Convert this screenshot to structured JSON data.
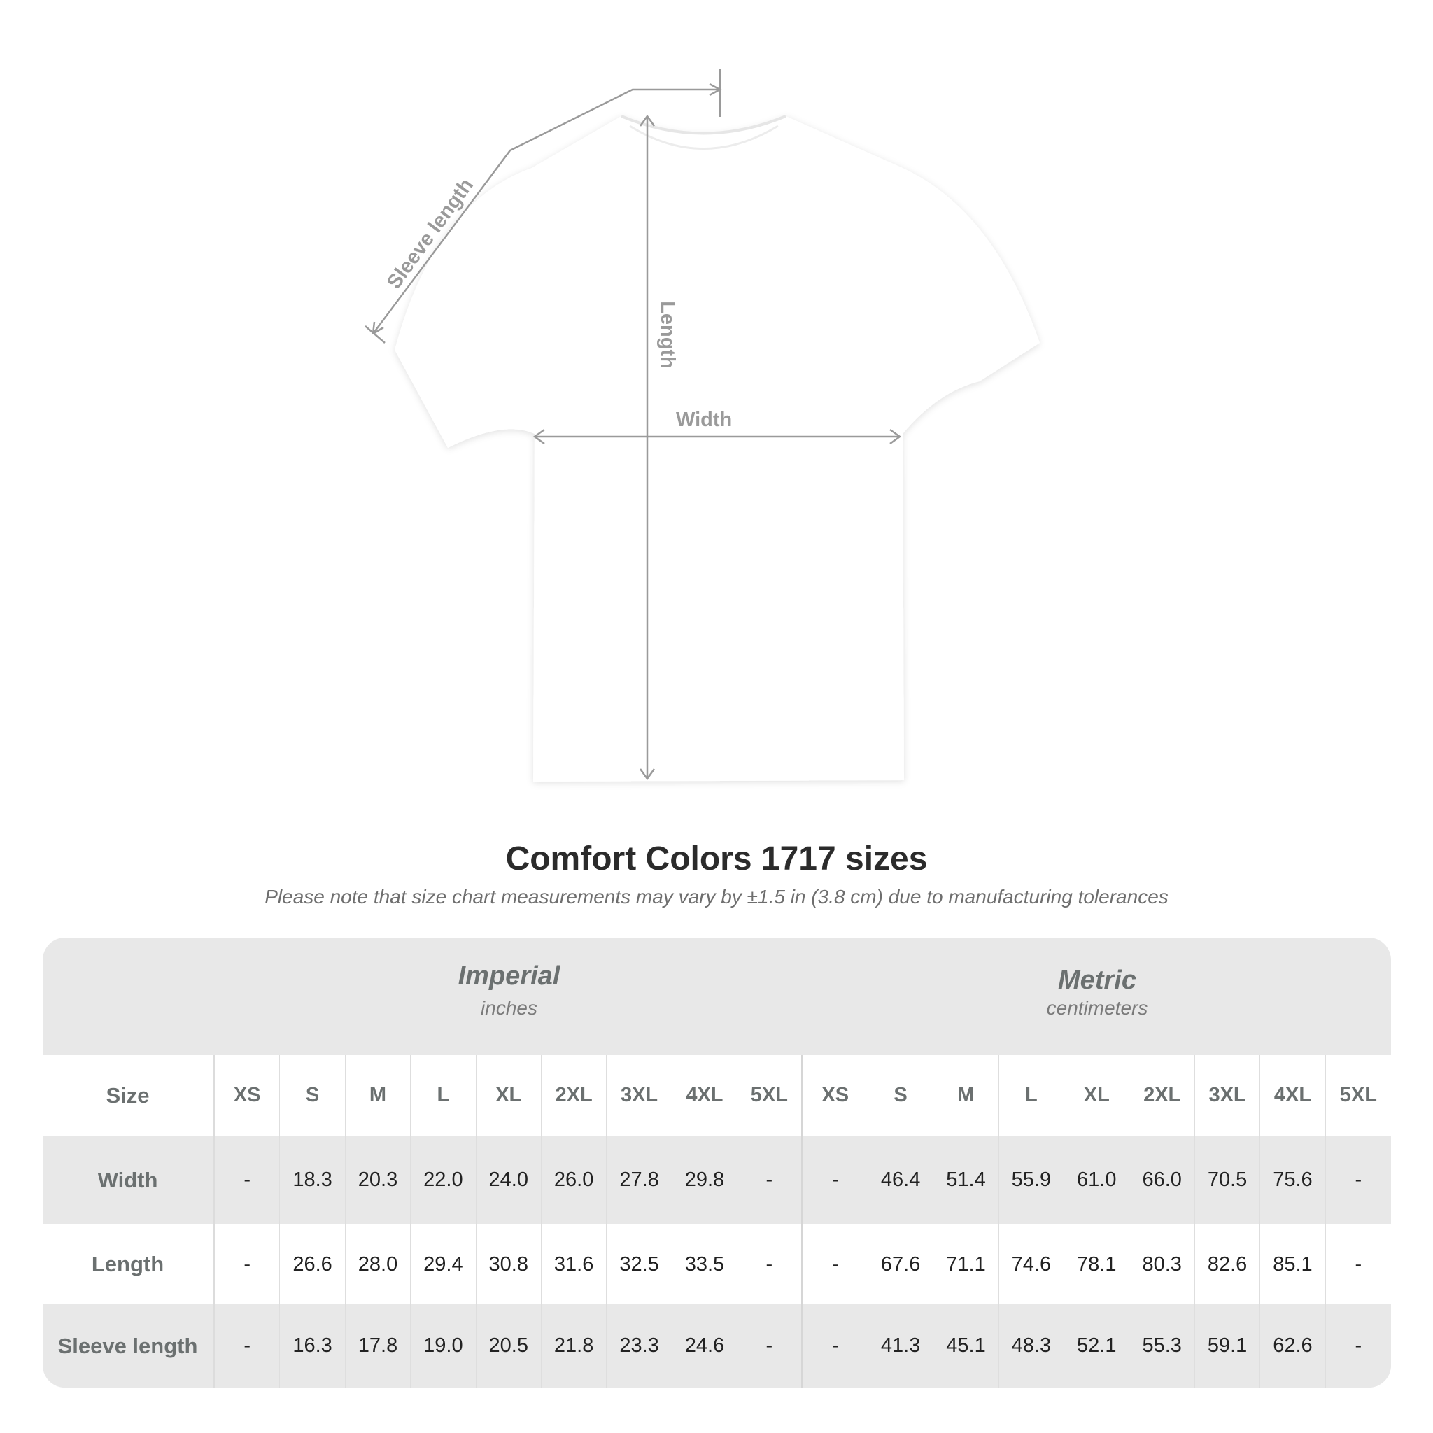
{
  "diagram": {
    "labels": {
      "sleeve_length": "Sleeve length",
      "length": "Length",
      "width": "Width"
    },
    "shirt_color": "#ffffff",
    "line_color": "#9a9a9a"
  },
  "title": "Comfort Colors 1717 sizes",
  "note": "Please note that size chart measurements may vary by ±1.5 in (3.8 cm) due to manufacturing tolerances",
  "table": {
    "imperial": {
      "title": "Imperial",
      "unit": "inches"
    },
    "metric": {
      "title": "Metric",
      "unit": "centimeters"
    },
    "size_label": "Size",
    "sizes": [
      "XS",
      "S",
      "M",
      "L",
      "XL",
      "2XL",
      "3XL",
      "4XL",
      "5XL"
    ],
    "rows": [
      {
        "label": "Width",
        "imperial": [
          "-",
          "18.3",
          "20.3",
          "22.0",
          "24.0",
          "26.0",
          "27.8",
          "29.8",
          "-"
        ],
        "metric": [
          "-",
          "46.4",
          "51.4",
          "55.9",
          "61.0",
          "66.0",
          "70.5",
          "75.6",
          "-"
        ]
      },
      {
        "label": "Length",
        "imperial": [
          "-",
          "26.6",
          "28.0",
          "29.4",
          "30.8",
          "31.6",
          "32.5",
          "33.5",
          "-"
        ],
        "metric": [
          "-",
          "67.6",
          "71.1",
          "74.6",
          "78.1",
          "80.3",
          "82.6",
          "85.1",
          "-"
        ]
      },
      {
        "label": "Sleeve length",
        "imperial": [
          "-",
          "16.3",
          "17.8",
          "19.0",
          "20.5",
          "21.8",
          "23.3",
          "24.6",
          "-"
        ],
        "metric": [
          "-",
          "41.3",
          "45.1",
          "48.3",
          "52.1",
          "55.3",
          "59.1",
          "62.6",
          "-"
        ]
      }
    ]
  }
}
